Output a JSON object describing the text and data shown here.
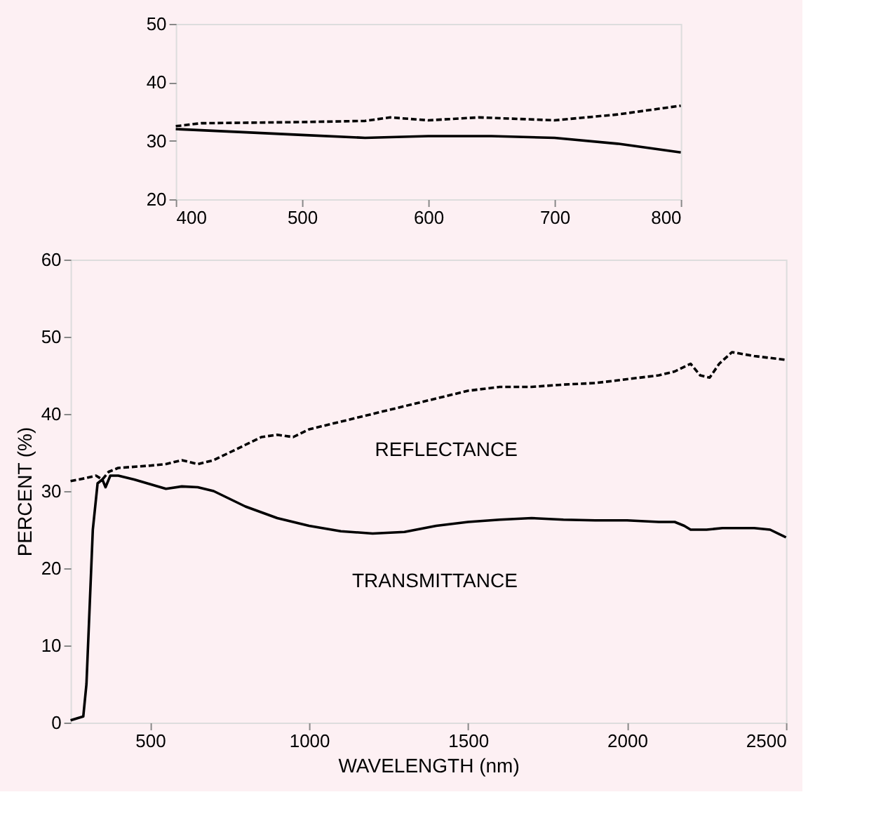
{
  "chart_data": [
    {
      "type": "line",
      "xlim": [
        400,
        800
      ],
      "ylim": [
        20,
        50
      ],
      "xticks": [
        400,
        500,
        600,
        700,
        800
      ],
      "yticks": [
        20,
        30,
        40,
        50
      ],
      "grid": false,
      "series": [
        {
          "color": "#000000",
          "line_style": "solid",
          "x": [
            400,
            450,
            500,
            550,
            600,
            650,
            700,
            750,
            800
          ],
          "values": [
            32,
            31.5,
            31,
            30.5,
            30.8,
            30.8,
            30.5,
            29.5,
            28
          ]
        },
        {
          "color": "#000000",
          "line_style": "dashed",
          "x": [
            400,
            420,
            500,
            550,
            570,
            600,
            640,
            700,
            750,
            800
          ],
          "values": [
            32.5,
            33,
            33.2,
            33.4,
            34,
            33.5,
            34,
            33.5,
            34.5,
            36
          ]
        }
      ]
    },
    {
      "type": "line",
      "xlabel": "WAVELENGTH (nm)",
      "ylabel": "PERCENT (%)",
      "xlim": [
        250,
        2500
      ],
      "ylim": [
        0,
        60
      ],
      "xticks": [
        500,
        1000,
        1500,
        2000,
        2500
      ],
      "yticks": [
        0,
        10,
        20,
        30,
        40,
        50,
        60
      ],
      "grid": false,
      "series": [
        {
          "name": "TRANSMITTANCE",
          "color": "#000000",
          "line_style": "solid",
          "x": [
            250,
            290,
            300,
            320,
            335,
            350,
            360,
            375,
            400,
            450,
            550,
            600,
            650,
            700,
            750,
            800,
            900,
            1000,
            1100,
            1200,
            1300,
            1400,
            1500,
            1600,
            1700,
            1800,
            1900,
            2000,
            2100,
            2150,
            2180,
            2200,
            2250,
            2300,
            2400,
            2450,
            2500
          ],
          "values": [
            0.3,
            0.8,
            5,
            25,
            31,
            31.5,
            30.5,
            32,
            32,
            31.5,
            30.3,
            30.6,
            30.5,
            30,
            29,
            28,
            26.5,
            25.5,
            24.8,
            24.5,
            24.7,
            25.5,
            26,
            26.3,
            26.5,
            26.3,
            26.2,
            26.2,
            26,
            26,
            25.5,
            25,
            25,
            25.2,
            25.2,
            25,
            24
          ]
        },
        {
          "name": "REFLECTANCE",
          "color": "#000000",
          "line_style": "dashed",
          "x": [
            250,
            300,
            330,
            350,
            370,
            400,
            500,
            550,
            600,
            650,
            700,
            750,
            800,
            850,
            900,
            950,
            1000,
            1100,
            1200,
            1300,
            1400,
            1500,
            1600,
            1700,
            1800,
            1900,
            2000,
            2100,
            2150,
            2200,
            2230,
            2260,
            2290,
            2330,
            2400,
            2500
          ],
          "values": [
            31.3,
            31.7,
            32,
            31.5,
            32.5,
            33,
            33.3,
            33.5,
            34,
            33.5,
            34,
            35,
            36,
            37,
            37.3,
            37,
            38,
            39,
            40,
            41,
            42,
            43,
            43.5,
            43.5,
            43.8,
            44,
            44.5,
            45,
            45.5,
            46.5,
            45,
            44.7,
            46.5,
            48,
            47.5,
            47
          ]
        }
      ]
    }
  ]
}
